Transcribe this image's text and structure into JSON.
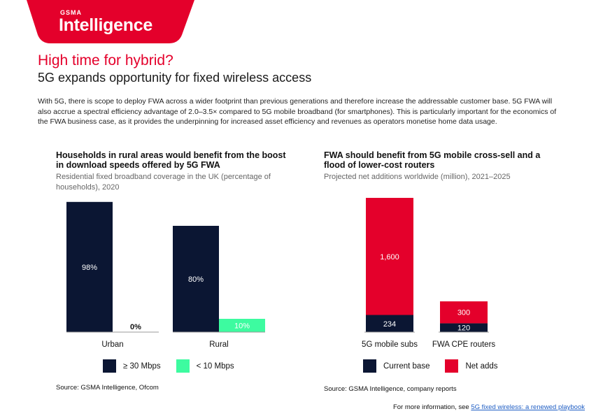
{
  "brand": {
    "top": "GSMA",
    "name": "Intelligence"
  },
  "title": "High time for hybrid?",
  "subtitle": "5G expands opportunity for fixed wireless access",
  "intro": "With 5G, there is scope to deploy FWA across a wider footprint than previous generations and therefore increase the addressable customer base. 5G FWA will also accrue a spectral efficiency advantage of 2.0–3.5× compared to 5G mobile broadband (for smartphones). This is particularly important for the economics of the FWA business case, as it provides the underpinning for increased asset efficiency and revenues as operators monetise home data usage.",
  "colors": {
    "red": "#e4002b",
    "navy": "#0b1633",
    "mint": "#3dfba0"
  },
  "chart_data": [
    {
      "type": "bar",
      "title": "Households in rural areas would benefit from the boost in download speeds offered by 5G FWA",
      "subtitle": "Residential fixed broadband coverage in the UK (percentage of households), 2020",
      "categories": [
        "Urban",
        "Rural"
      ],
      "series": [
        {
          "name": "≥ 30 Mbps",
          "values": [
            98,
            80
          ],
          "labels": [
            "98%",
            "80%"
          ],
          "color": "#0b1633"
        },
        {
          "name": "< 10 Mbps",
          "values": [
            0,
            10
          ],
          "labels": [
            "0%",
            "10%"
          ],
          "color": "#3dfba0"
        }
      ],
      "ylim": [
        0,
        100
      ],
      "grid": false,
      "legend": "bottom",
      "source": "Source: GSMA Intelligence, Ofcom"
    },
    {
      "type": "bar",
      "stacked": true,
      "title": "FWA should benefit from 5G mobile cross-sell and a flood of lower-cost routers",
      "subtitle": "Projected net additions worldwide (million), 2021–2025",
      "categories": [
        "5G mobile subs",
        "FWA CPE routers"
      ],
      "series": [
        {
          "name": "Current base",
          "values": [
            234,
            120
          ],
          "labels": [
            "234",
            "120"
          ],
          "color": "#0b1633"
        },
        {
          "name": "Net adds",
          "values": [
            1600,
            300
          ],
          "labels": [
            "1,600",
            "300"
          ],
          "color": "#e4002b"
        }
      ],
      "ylim": [
        0,
        1834
      ],
      "grid": false,
      "legend": "bottom",
      "source": "Source: GSMA Intelligence, company reports"
    }
  ],
  "footer": {
    "text": "For more information, see ",
    "link": "5G fixed wireless: a renewed playbook"
  }
}
